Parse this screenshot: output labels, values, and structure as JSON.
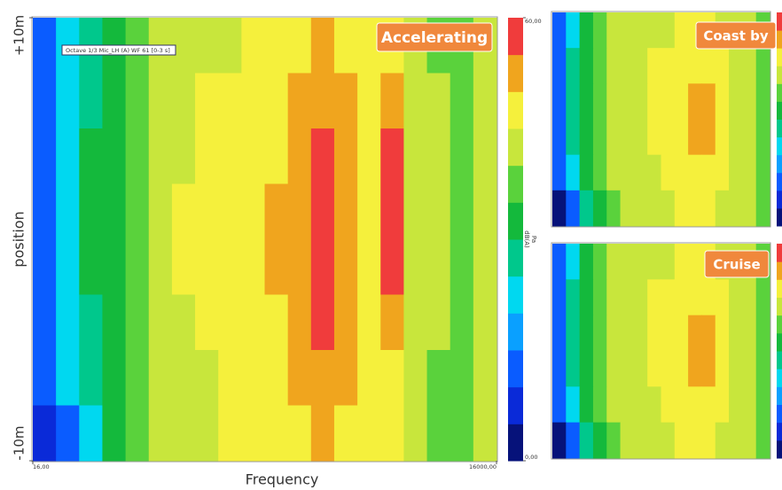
{
  "chart_data": [
    {
      "type": "heatmap",
      "title": "Accelerating",
      "legend": "Octave 1/3 Mic_LH (A) WF 61 [0-3 s]",
      "xlabel": "Frequency",
      "ylabel": "position",
      "xscale": "log",
      "xlim": [
        16,
        16000
      ],
      "xticks": [
        {
          "value": 16,
          "label": "16,00"
        },
        {
          "value": 16000,
          "label": "16000,00"
        }
      ],
      "ylim": [
        -10,
        10
      ],
      "yticks": [
        {
          "value": 10,
          "label": "+10m"
        },
        {
          "value": -10,
          "label": "-10m"
        }
      ],
      "zlim": [
        0,
        60
      ],
      "zticks": [
        {
          "value": 60,
          "label": "60,00"
        },
        {
          "value": 0,
          "label": "0,00"
        }
      ],
      "zlabel": "dB(A)",
      "zunit": "Pa",
      "colormap": [
        "#06127a",
        "#0a2ad8",
        "#0a5cff",
        "#0aa0ff",
        "#00d8f0",
        "#00c88c",
        "#14b93c",
        "#5ad23c",
        "#c8e63c",
        "#f5f03c",
        "#f0a51e",
        "#f03c3c"
      ],
      "values": [
        [
          10,
          20,
          28,
          32,
          37,
          41,
          43,
          44,
          44,
          45,
          46,
          48,
          50,
          48,
          46,
          48,
          42,
          39,
          38,
          42
        ],
        [
          11,
          21,
          29,
          33,
          38,
          42,
          44,
          45,
          45,
          46,
          47,
          50,
          53,
          50,
          47,
          50,
          43,
          40,
          38,
          42
        ],
        [
          12,
          22,
          30,
          33,
          38,
          42,
          44,
          45,
          46,
          47,
          49,
          52,
          56,
          51,
          48,
          55,
          44,
          40,
          38,
          42
        ],
        [
          12,
          22,
          30,
          33,
          38,
          42,
          45,
          46,
          47,
          48,
          50,
          54,
          58,
          53,
          49,
          57,
          44,
          40,
          38,
          42
        ],
        [
          12,
          22,
          30,
          33,
          38,
          42,
          45,
          46,
          47,
          48,
          50,
          54,
          58,
          53,
          49,
          56,
          44,
          40,
          38,
          42
        ],
        [
          11,
          21,
          29,
          33,
          38,
          42,
          44,
          45,
          46,
          47,
          49,
          53,
          57,
          52,
          48,
          50,
          43,
          40,
          38,
          42
        ],
        [
          10,
          20,
          29,
          32,
          37,
          41,
          43,
          44,
          45,
          46,
          48,
          51,
          53,
          50,
          47,
          48,
          43,
          39,
          38,
          42
        ],
        [
          5,
          12,
          22,
          30,
          36,
          40,
          42,
          44,
          45,
          46,
          47,
          49,
          50,
          48,
          46,
          47,
          42,
          38,
          36,
          40
        ]
      ]
    },
    {
      "type": "heatmap",
      "title": "Coast by",
      "zlim": [
        0,
        60
      ],
      "colormap": [
        "#06127a",
        "#0a2ad8",
        "#0a5cff",
        "#0aa0ff",
        "#00d8f0",
        "#00c88c",
        "#14b93c",
        "#5ad23c",
        "#c8e63c",
        "#f5f03c",
        "#f0a51e",
        "#f03c3c"
      ],
      "values": [
        [
          10,
          24,
          32,
          36,
          40,
          42,
          43,
          44,
          44,
          45,
          46,
          47,
          44,
          43,
          41,
          39
        ],
        [
          11,
          25,
          33,
          37,
          41,
          43,
          44,
          45,
          45,
          46,
          48,
          49,
          45,
          44,
          41,
          39
        ],
        [
          11,
          25,
          33,
          37,
          41,
          43,
          44,
          45,
          46,
          47,
          50,
          52,
          46,
          44,
          41,
          39
        ],
        [
          11,
          25,
          33,
          37,
          41,
          43,
          44,
          45,
          46,
          47,
          51,
          53,
          46,
          44,
          41,
          39
        ],
        [
          10,
          24,
          32,
          36,
          40,
          42,
          43,
          44,
          45,
          46,
          48,
          49,
          45,
          43,
          41,
          39
        ],
        [
          4,
          14,
          26,
          34,
          39,
          41,
          43,
          44,
          44,
          45,
          46,
          47,
          44,
          43,
          40,
          38
        ]
      ]
    },
    {
      "type": "heatmap",
      "title": "Cruise",
      "zlim": [
        0,
        60
      ],
      "colormap": [
        "#06127a",
        "#0a2ad8",
        "#0a5cff",
        "#0aa0ff",
        "#00d8f0",
        "#00c88c",
        "#14b93c",
        "#5ad23c",
        "#c8e63c",
        "#f5f03c",
        "#f0a51e",
        "#f03c3c"
      ],
      "values": [
        [
          10,
          24,
          32,
          36,
          40,
          42,
          43,
          44,
          44,
          45,
          46,
          46,
          44,
          43,
          41,
          39
        ],
        [
          11,
          25,
          33,
          37,
          41,
          43,
          44,
          45,
          45,
          46,
          47,
          48,
          45,
          44,
          41,
          39
        ],
        [
          11,
          25,
          33,
          37,
          41,
          43,
          44,
          45,
          46,
          47,
          50,
          51,
          46,
          44,
          41,
          39
        ],
        [
          11,
          25,
          33,
          37,
          41,
          43,
          44,
          45,
          46,
          47,
          51,
          52,
          46,
          44,
          41,
          39
        ],
        [
          10,
          24,
          32,
          36,
          40,
          42,
          43,
          44,
          45,
          46,
          48,
          48,
          45,
          43,
          41,
          39
        ],
        [
          4,
          14,
          26,
          34,
          39,
          41,
          43,
          44,
          44,
          45,
          46,
          46,
          44,
          43,
          40,
          38
        ]
      ]
    }
  ]
}
